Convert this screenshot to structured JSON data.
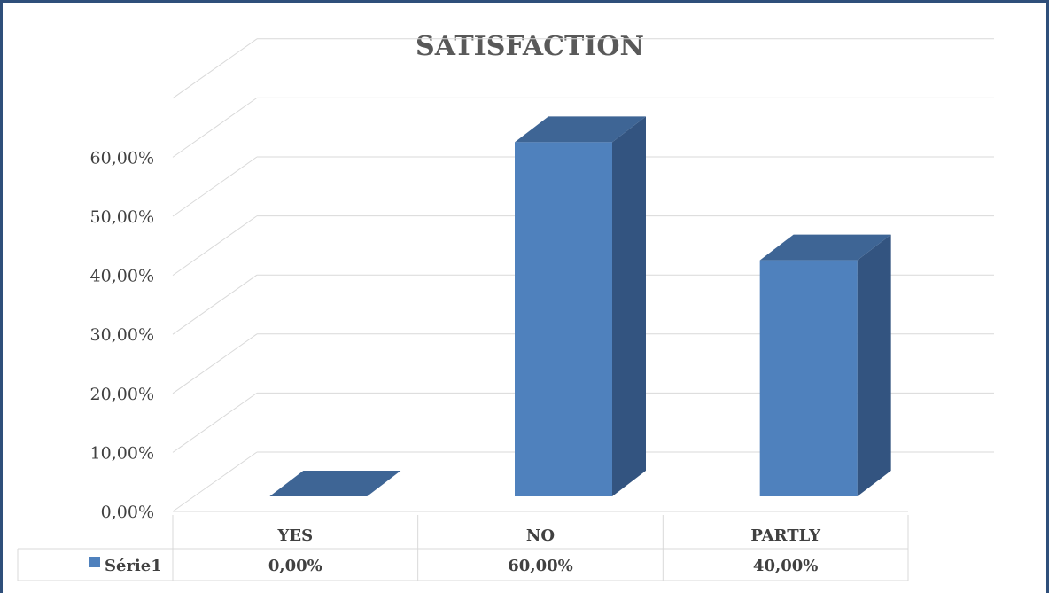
{
  "chart_data": {
    "type": "bar",
    "title": "SATISFACTION",
    "categories": [
      "YES",
      "NO",
      "PARTLY"
    ],
    "series": [
      {
        "name": "Série1",
        "values": [
          0.0,
          60.0,
          40.0
        ],
        "labels": [
          "0,00%",
          "60,00%",
          "40,00%"
        ],
        "color": "#4f81bd"
      }
    ],
    "yticks": [
      "0,00%",
      "10,00%",
      "20,00%",
      "30,00%",
      "40,00%",
      "50,00%",
      "60,00%"
    ],
    "ylim": [
      0,
      70
    ],
    "grid": true,
    "style": "3d-column",
    "data_table": true
  },
  "colors": {
    "bar_front": "#4f81bd",
    "bar_side": "#335480",
    "bar_top": "#3e6595",
    "frame": "#2f4f7a"
  }
}
